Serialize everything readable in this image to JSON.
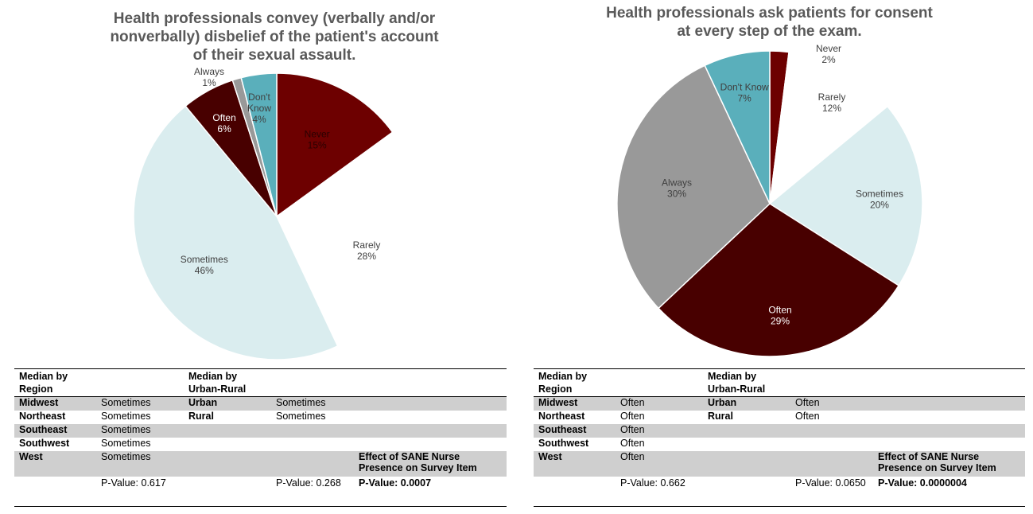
{
  "chart_data": [
    {
      "type": "pie",
      "title": "Health professionals convey (verbally and/or nonverbally) disbelief of the patient's account of their sexual assault.",
      "slices": [
        {
          "label": "Never",
          "value": 15,
          "pct_label": "15%",
          "color": "#6d0000",
          "text_color": "#2a0000"
        },
        {
          "label": "Rarely",
          "value": 28,
          "pct_label": "28%",
          "color": "#ffffff",
          "text_color": "#404040"
        },
        {
          "label": "Sometimes",
          "value": 46,
          "pct_label": "46%",
          "color": "#daedef",
          "text_color": "#404040"
        },
        {
          "label": "Often",
          "value": 6,
          "pct_label": "6%",
          "color": "#480000",
          "text_color": "#ffffff"
        },
        {
          "label": "Always",
          "value": 1,
          "pct_label": "1%",
          "color": "#999999",
          "text_color": "#404040"
        },
        {
          "label": "Don't Know",
          "value": 4,
          "pct_label": "4%",
          "color": "#5aafbb",
          "text_color": "#404040"
        }
      ]
    },
    {
      "type": "pie",
      "title": "Health professionals ask patients for consent at every step of the exam.",
      "slices": [
        {
          "label": "Never",
          "value": 2,
          "pct_label": "2%",
          "color": "#6d0000",
          "text_color": "#404040"
        },
        {
          "label": "Rarely",
          "value": 12,
          "pct_label": "12%",
          "color": "#ffffff",
          "text_color": "#404040"
        },
        {
          "label": "Sometimes",
          "value": 20,
          "pct_label": "20%",
          "color": "#daedef",
          "text_color": "#404040"
        },
        {
          "label": "Often",
          "value": 29,
          "pct_label": "29%",
          "color": "#480000",
          "text_color": "#ffffff"
        },
        {
          "label": "Always",
          "value": 30,
          "pct_label": "30%",
          "color": "#999999",
          "text_color": "#404040"
        },
        {
          "label": "Don't Know",
          "value": 7,
          "pct_label": "7%",
          "color": "#5aafbb",
          "text_color": "#404040"
        }
      ]
    }
  ],
  "tables": [
    {
      "header": {
        "region": "Median by Region",
        "urban": "Median by Urban-Rural"
      },
      "rows": [
        {
          "region": "Midwest",
          "region_val": "Sometimes",
          "ur": "Urban",
          "ur_val": "Sometimes"
        },
        {
          "region": "Northeast",
          "region_val": "Sometimes",
          "ur": "Rural",
          "ur_val": "Sometimes"
        },
        {
          "region": "Southeast",
          "region_val": "Sometimes",
          "ur": "",
          "ur_val": ""
        },
        {
          "region": "Southwest",
          "region_val": "Sometimes",
          "ur": "",
          "ur_val": ""
        },
        {
          "region": "West",
          "region_val": "Sometimes",
          "ur": "",
          "ur_val": ""
        }
      ],
      "sane_label": "Effect of SANE Nurse Presence on Survey Item",
      "p_region": "P-Value: 0.617",
      "p_urban": "P-Value: 0.268",
      "p_sane": "P-Value: 0.0007"
    },
    {
      "header": {
        "region": "Median by Region",
        "urban": "Median by Urban-Rural"
      },
      "rows": [
        {
          "region": "Midwest",
          "region_val": "Often",
          "ur": "Urban",
          "ur_val": "Often"
        },
        {
          "region": "Northeast",
          "region_val": "Often",
          "ur": "Rural",
          "ur_val": "Often"
        },
        {
          "region": "Southeast",
          "region_val": "Often",
          "ur": "",
          "ur_val": ""
        },
        {
          "region": "Southwest",
          "region_val": "Often",
          "ur": "",
          "ur_val": ""
        },
        {
          "region": "West",
          "region_val": "Often",
          "ur": "",
          "ur_val": ""
        }
      ],
      "sane_label": "Effect of SANE Nurse Presence on Survey Item",
      "p_region": "P-Value: 0.662",
      "p_urban": "P-Value: 0.0650",
      "p_sane": "P-Value: 0.0000004"
    }
  ]
}
